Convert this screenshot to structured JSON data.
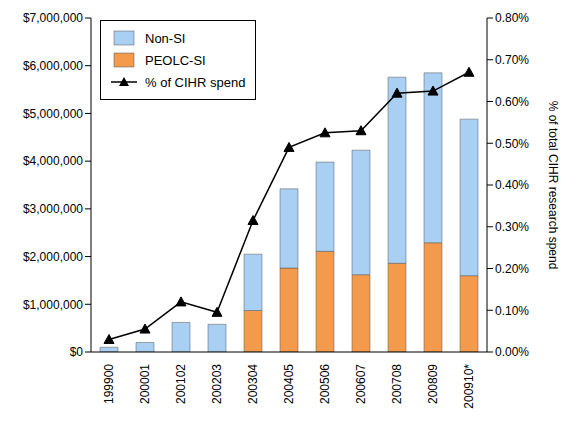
{
  "chart_data": {
    "type": "bar",
    "stacked": true,
    "legend": "top-left",
    "grid": false,
    "categories": [
      "199900",
      "200001",
      "200102",
      "200203",
      "200304",
      "200405",
      "200506",
      "200607",
      "200708",
      "200809",
      "200910*"
    ],
    "series": [
      {
        "name": "PEOLC-SI",
        "type": "bar",
        "color": "#f39a4c",
        "values": [
          0,
          0,
          0,
          0,
          870000,
          1760000,
          2110000,
          1620000,
          1860000,
          2290000,
          1600000
        ]
      },
      {
        "name": "Non-SI",
        "type": "bar",
        "color": "#a9d0f2",
        "values": [
          100000,
          200000,
          620000,
          580000,
          1180000,
          1660000,
          1870000,
          2610000,
          3900000,
          3560000,
          3280000
        ]
      },
      {
        "name": "% of CIHR spend",
        "type": "line",
        "axis": "y2",
        "color": "#000000",
        "marker": "triangle",
        "values": [
          0.03,
          0.055,
          0.12,
          0.095,
          0.315,
          0.49,
          0.525,
          0.53,
          0.62,
          0.625,
          0.67
        ]
      }
    ],
    "legend_order": [
      "Non-SI",
      "PEOLC-SI",
      "% of CIHR spend"
    ],
    "ylim": [
      0,
      7000000
    ],
    "yticks": [
      {
        "value": 0,
        "label": "$0"
      },
      {
        "value": 1000000,
        "label": "$1,000,000"
      },
      {
        "value": 2000000,
        "label": "$2,000,000"
      },
      {
        "value": 3000000,
        "label": "$3,000,000"
      },
      {
        "value": 4000000,
        "label": "$4,000,000"
      },
      {
        "value": 5000000,
        "label": "$5,000,000"
      },
      {
        "value": 6000000,
        "label": "$6,000,000"
      },
      {
        "value": 7000000,
        "label": "$7,000,000"
      }
    ],
    "y2label": "% of total CIHR research spend",
    "y2lim": [
      0,
      0.8
    ],
    "y2ticks": [
      {
        "value": 0,
        "label": "0.00%"
      },
      {
        "value": 0.1,
        "label": "0.10%"
      },
      {
        "value": 0.2,
        "label": "0.20%"
      },
      {
        "value": 0.3,
        "label": "0.30%"
      },
      {
        "value": 0.4,
        "label": "0.40%"
      },
      {
        "value": 0.5,
        "label": "0.50%"
      },
      {
        "value": 0.6,
        "label": "0.60%"
      },
      {
        "value": 0.7,
        "label": "0.70%"
      },
      {
        "value": 0.8,
        "label": "0.80%"
      }
    ]
  }
}
